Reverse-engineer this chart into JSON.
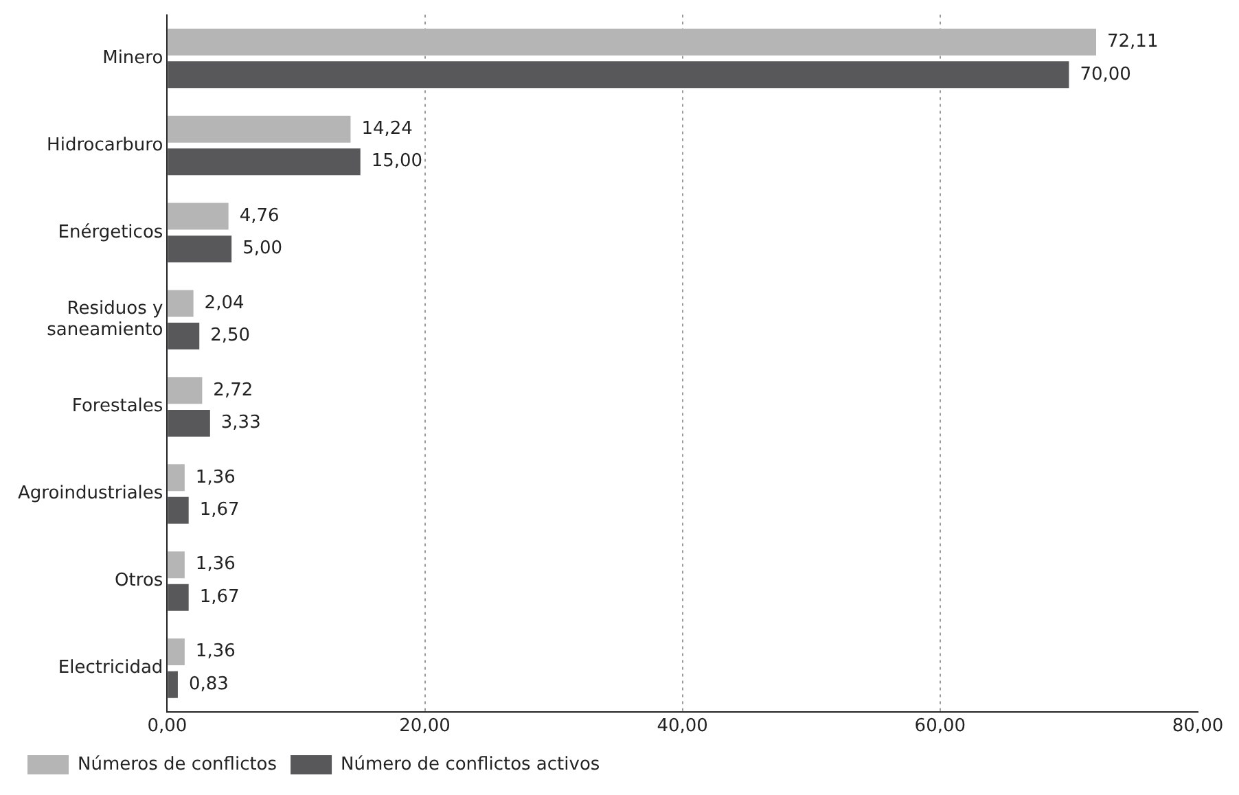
{
  "chart_data": {
    "type": "bar",
    "orientation": "horizontal",
    "categories": [
      "Minero",
      "Hidrocarburo",
      "Enérgeticos",
      "Residuos y saneamiento",
      "Forestales",
      "Agroindustriales",
      "Otros",
      "Electricidad"
    ],
    "series": [
      {
        "name": "Números de conflictos",
        "color": "#b5b5b6",
        "values": [
          72.11,
          14.24,
          4.76,
          2.04,
          2.72,
          1.36,
          1.36,
          1.36
        ],
        "value_labels": [
          "72,11",
          "14,24",
          "4,76",
          "2,04",
          "2,72",
          "1,36",
          "1,36",
          "1,36"
        ]
      },
      {
        "name": "Número de conflictos activos",
        "color": "#58585a",
        "values": [
          70.0,
          15.0,
          5.0,
          2.5,
          3.33,
          1.67,
          1.67,
          0.83
        ],
        "value_labels": [
          "70,00",
          "15,00",
          "5,00",
          "2,50",
          "3,33",
          "1,67",
          "1,67",
          "0,83"
        ]
      }
    ],
    "xlim": [
      0,
      80
    ],
    "xticks": [
      {
        "value": 0,
        "label": "0,00"
      },
      {
        "value": 20,
        "label": "20,00"
      },
      {
        "value": 40,
        "label": "40,00"
      },
      {
        "value": 60,
        "label": "60,00"
      },
      {
        "value": 80,
        "label": "80,00"
      }
    ],
    "grid": "x",
    "line_style": "dotted",
    "legend": "bottom left"
  }
}
